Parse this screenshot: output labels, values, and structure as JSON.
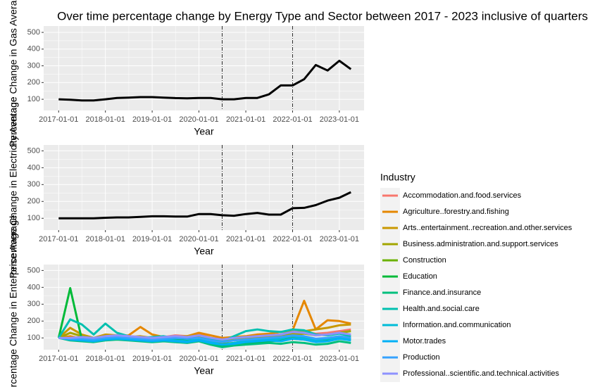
{
  "chart_data": [
    {
      "type": "line",
      "title": "Over time percentage change by Energy Type and Sector between 2017 - 2023 inclusive of quarters",
      "y_label": "Percentage Change in Gas Average",
      "x_label": "Year",
      "x": [
        "2017-01-01",
        "2017-04-01",
        "2017-07-01",
        "2017-10-01",
        "2018-01-01",
        "2018-04-01",
        "2018-07-01",
        "2018-10-01",
        "2019-01-01",
        "2019-04-01",
        "2019-07-01",
        "2019-10-01",
        "2020-01-01",
        "2020-04-01",
        "2020-07-01",
        "2020-10-01",
        "2021-01-01",
        "2021-04-01",
        "2021-07-01",
        "2021-10-01",
        "2022-01-01",
        "2022-04-01",
        "2022-07-01",
        "2022-10-01",
        "2023-01-01",
        "2023-04-01"
      ],
      "xlim": [
        "2016-09-06",
        "2023-07-13"
      ],
      "xticks": [
        "2017-01-01",
        "2018-01-01",
        "2019-01-01",
        "2020-01-01",
        "2021-01-01",
        "2022-01-01",
        "2023-01-01"
      ],
      "ylim": [
        33,
        538
      ],
      "yticks": [
        100,
        200,
        300,
        400,
        500
      ],
      "grid": true,
      "vlines": [
        "2020-07-01",
        "2022-01-01"
      ],
      "series": [
        {
          "color": "#000000",
          "values": [
            100,
            97,
            93,
            93,
            100,
            108,
            110,
            113,
            113,
            110,
            107,
            106,
            108,
            108,
            100,
            100,
            108,
            108,
            130,
            183,
            183,
            220,
            305,
            272,
            330,
            280
          ]
        }
      ]
    },
    {
      "type": "line",
      "y_label": "Percentage Change in Electricity Average",
      "x_label": "Year",
      "x": [
        "2017-01-01",
        "2017-04-01",
        "2017-07-01",
        "2017-10-01",
        "2018-01-01",
        "2018-04-01",
        "2018-07-01",
        "2018-10-01",
        "2019-01-01",
        "2019-04-01",
        "2019-07-01",
        "2019-10-01",
        "2020-01-01",
        "2020-04-01",
        "2020-07-01",
        "2020-10-01",
        "2021-01-01",
        "2021-04-01",
        "2021-07-01",
        "2021-10-01",
        "2022-01-01",
        "2022-04-01",
        "2022-07-01",
        "2022-10-01",
        "2023-01-01",
        "2023-04-01"
      ],
      "xlim": [
        "2016-09-06",
        "2023-07-13"
      ],
      "xticks": [
        "2017-01-01",
        "2018-01-01",
        "2019-01-01",
        "2020-01-01",
        "2021-01-01",
        "2022-01-01",
        "2023-01-01"
      ],
      "ylim": [
        30,
        535
      ],
      "yticks": [
        100,
        200,
        300,
        400,
        500
      ],
      "grid": true,
      "vlines": [
        "2020-07-01",
        "2022-01-01"
      ],
      "series": [
        {
          "color": "#000000",
          "values": [
            100,
            100,
            100,
            100,
            103,
            105,
            105,
            108,
            112,
            112,
            110,
            110,
            125,
            125,
            118,
            115,
            125,
            132,
            122,
            122,
            160,
            162,
            178,
            205,
            222,
            255
          ]
        }
      ]
    },
    {
      "type": "line",
      "y_label": "Percentage Change in Enterprise Average",
      "x_label": "Year",
      "x": [
        "2017-01-01",
        "2017-04-01",
        "2017-07-01",
        "2017-10-01",
        "2018-01-01",
        "2018-04-01",
        "2018-07-01",
        "2018-10-01",
        "2019-01-01",
        "2019-04-01",
        "2019-07-01",
        "2019-10-01",
        "2020-01-01",
        "2020-04-01",
        "2020-07-01",
        "2020-10-01",
        "2021-01-01",
        "2021-04-01",
        "2021-07-01",
        "2021-10-01",
        "2022-01-01",
        "2022-04-01",
        "2022-07-01",
        "2022-10-01",
        "2023-01-01",
        "2023-04-01"
      ],
      "xlim": [
        "2016-09-06",
        "2023-07-13"
      ],
      "xticks": [
        "2017-01-01",
        "2018-01-01",
        "2019-01-01",
        "2020-01-01",
        "2021-01-01",
        "2022-01-01",
        "2023-01-01"
      ],
      "ylim": [
        30,
        535
      ],
      "yticks": [
        100,
        200,
        300,
        400,
        500
      ],
      "grid": true,
      "vlines": [
        "2020-07-01",
        "2022-01-01"
      ],
      "legend_title": "Industry",
      "legend": "right",
      "series": [
        {
          "name": "Accommodation.and.food.services",
          "color": "#F8766D",
          "values": [
            100,
            105,
            100,
            95,
            110,
            115,
            110,
            105,
            100,
            105,
            115,
            110,
            120,
            100,
            90,
            95,
            100,
            110,
            115,
            120,
            140,
            135,
            125,
            130,
            140,
            150
          ]
        },
        {
          "name": "Agriculture..forestry.and.fishing",
          "color": "#E58700",
          "values": [
            100,
            110,
            95,
            90,
            105,
            110,
            115,
            165,
            120,
            105,
            100,
            110,
            130,
            115,
            100,
            105,
            110,
            120,
            125,
            135,
            145,
            320,
            150,
            205,
            200,
            185
          ]
        },
        {
          "name": "Arts..entertainment..recreation.and.other.services",
          "color": "#C99800",
          "values": [
            100,
            160,
            120,
            100,
            120,
            115,
            105,
            110,
            100,
            95,
            105,
            110,
            115,
            100,
            90,
            95,
            105,
            110,
            115,
            120,
            130,
            140,
            150,
            160,
            175,
            180
          ]
        },
        {
          "name": "Business.administration.and.support.services",
          "color": "#A3A500",
          "values": [
            100,
            130,
            110,
            100,
            110,
            105,
            100,
            100,
            95,
            100,
            105,
            100,
            110,
            95,
            85,
            90,
            100,
            105,
            110,
            115,
            120,
            125,
            115,
            120,
            130,
            140
          ]
        },
        {
          "name": "Construction",
          "color": "#6BB100",
          "values": [
            100,
            90,
            85,
            80,
            90,
            95,
            90,
            85,
            80,
            85,
            90,
            85,
            90,
            75,
            65,
            70,
            80,
            85,
            90,
            95,
            100,
            95,
            90,
            95,
            100,
            105
          ]
        },
        {
          "name": "Education",
          "color": "#00BA38",
          "values": [
            100,
            395,
            90,
            85,
            95,
            100,
            95,
            90,
            85,
            90,
            95,
            90,
            85,
            70,
            55,
            60,
            70,
            75,
            80,
            85,
            95,
            90,
            80,
            85,
            95,
            90
          ]
        },
        {
          "name": "Finance.and.insurance",
          "color": "#00BF7D",
          "values": [
            100,
            85,
            80,
            75,
            85,
            90,
            85,
            80,
            75,
            80,
            75,
            70,
            80,
            60,
            45,
            55,
            60,
            65,
            70,
            65,
            75,
            70,
            60,
            65,
            80,
            70
          ]
        },
        {
          "name": "Health.and.social.care",
          "color": "#00C0AF",
          "values": [
            100,
            210,
            180,
            120,
            185,
            130,
            110,
            100,
            105,
            110,
            100,
            95,
            100,
            90,
            80,
            110,
            140,
            150,
            140,
            135,
            150,
            145,
            120,
            115,
            125,
            110
          ]
        },
        {
          "name": "Information.and.communication",
          "color": "#00BCD8",
          "values": [
            100,
            95,
            90,
            85,
            95,
            100,
            95,
            90,
            85,
            90,
            85,
            80,
            90,
            75,
            60,
            70,
            80,
            85,
            90,
            95,
            110,
            100,
            85,
            95,
            100,
            95
          ]
        },
        {
          "name": "Motor.trades",
          "color": "#00B0F6",
          "values": [
            100,
            90,
            85,
            80,
            90,
            95,
            90,
            85,
            80,
            85,
            80,
            75,
            85,
            70,
            60,
            65,
            75,
            80,
            85,
            80,
            95,
            90,
            75,
            80,
            95,
            85
          ]
        },
        {
          "name": "Production",
          "color": "#35A2FF",
          "values": [
            100,
            95,
            95,
            90,
            100,
            105,
            100,
            95,
            90,
            95,
            100,
            95,
            100,
            85,
            75,
            85,
            90,
            95,
            100,
            105,
            115,
            110,
            95,
            100,
            110,
            100
          ]
        },
        {
          "name": "Professional..scientific.and.technical.activities",
          "color": "#8E92FF",
          "values": [
            100,
            100,
            105,
            100,
            110,
            115,
            110,
            105,
            100,
            105,
            110,
            105,
            115,
            100,
            90,
            100,
            105,
            110,
            115,
            120,
            135,
            130,
            115,
            120,
            130,
            120
          ]
        }
      ]
    }
  ]
}
